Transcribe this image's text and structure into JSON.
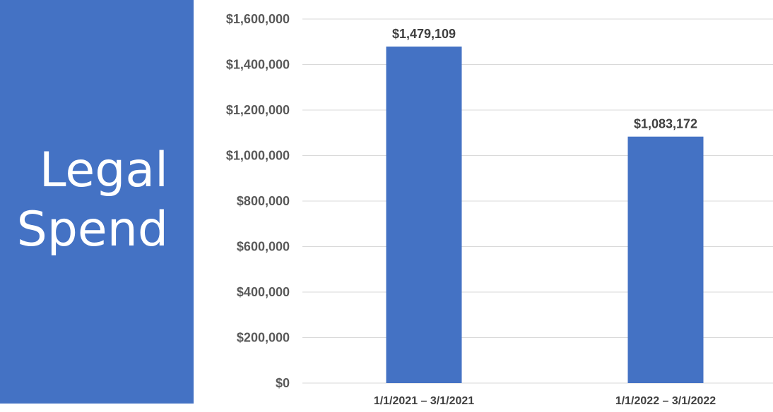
{
  "panel": {
    "title_line1": "Legal",
    "title_line2": "Spend",
    "color": "#4472c4"
  },
  "chart_data": {
    "type": "bar",
    "title": "Legal Spend",
    "categories": [
      "1/1/2021 – 3/1/2021",
      "1/1/2022 – 3/1/2022"
    ],
    "values": [
      1479109,
      1083172
    ],
    "data_labels": [
      "$1,479,109",
      "$1,083,172"
    ],
    "ylim": [
      0,
      1600000
    ],
    "yticks": [
      0,
      200000,
      400000,
      600000,
      800000,
      1000000,
      1200000,
      1400000,
      1600000
    ],
    "ytick_labels": [
      "$0",
      "$200,000",
      "$400,000",
      "$600,000",
      "$800,000",
      "$1,000,000",
      "$1,200,000",
      "$1,400,000",
      "$1,600,000"
    ],
    "grid": true,
    "bar_color": "#4472c4",
    "xlabel": "",
    "ylabel": ""
  }
}
